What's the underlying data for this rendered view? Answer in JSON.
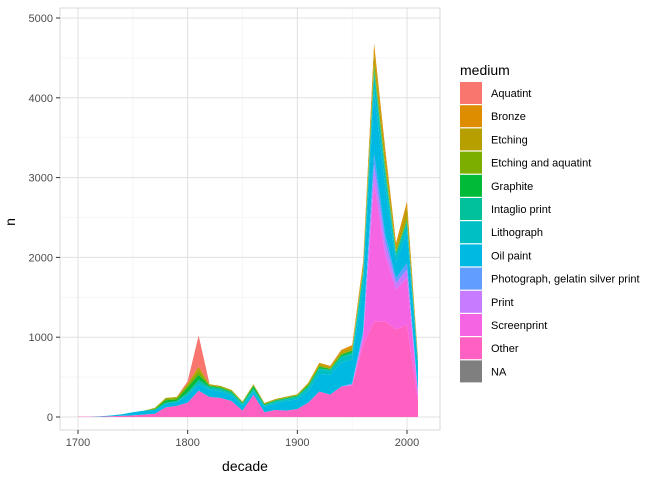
{
  "chart_data": {
    "type": "area",
    "stacked": true,
    "title": "",
    "xlabel": "decade",
    "ylabel": "n",
    "xlim": [
      1690,
      2010
    ],
    "ylim": [
      0,
      5000
    ],
    "x_ticks": [
      1700,
      1800,
      1900,
      2000
    ],
    "y_ticks": [
      0,
      1000,
      2000,
      3000,
      4000,
      5000
    ],
    "grid": true,
    "legend_title": "medium",
    "legend_position": "right",
    "x": [
      1700,
      1710,
      1720,
      1730,
      1740,
      1750,
      1760,
      1770,
      1780,
      1790,
      1800,
      1810,
      1820,
      1830,
      1840,
      1850,
      1860,
      1870,
      1880,
      1890,
      1900,
      1910,
      1920,
      1930,
      1940,
      1950,
      1960,
      1970,
      1980,
      1990,
      2000,
      2010
    ],
    "series": [
      {
        "name": "Other",
        "color": "#FF61C3",
        "values": [
          5,
          5,
          5,
          10,
          15,
          20,
          30,
          40,
          120,
          140,
          180,
          330,
          250,
          240,
          200,
          80,
          280,
          60,
          90,
          80,
          100,
          180,
          320,
          280,
          380,
          400,
          900,
          1200,
          1200,
          1100,
          1150,
          200
        ]
      },
      {
        "name": "Screenprint",
        "color": "#F564E3",
        "values": [
          0,
          0,
          0,
          0,
          0,
          0,
          0,
          0,
          0,
          0,
          0,
          0,
          0,
          0,
          0,
          0,
          0,
          0,
          0,
          0,
          0,
          0,
          0,
          0,
          0,
          0,
          80,
          1750,
          850,
          500,
          600,
          80
        ]
      },
      {
        "name": "Print",
        "color": "#C77CFF",
        "values": [
          0,
          0,
          0,
          0,
          0,
          0,
          0,
          0,
          0,
          0,
          0,
          0,
          0,
          0,
          0,
          0,
          0,
          0,
          0,
          0,
          0,
          0,
          0,
          0,
          0,
          10,
          50,
          200,
          150,
          80,
          100,
          20
        ]
      },
      {
        "name": "Photograph, gelatin silver print",
        "color": "#619CFF",
        "values": [
          0,
          0,
          0,
          0,
          0,
          0,
          0,
          0,
          0,
          0,
          0,
          0,
          0,
          0,
          0,
          0,
          0,
          0,
          0,
          0,
          0,
          0,
          0,
          0,
          0,
          10,
          50,
          150,
          100,
          60,
          80,
          20
        ]
      },
      {
        "name": "Oil paint",
        "color": "#00B9E3",
        "values": [
          0,
          0,
          5,
          8,
          20,
          40,
          50,
          50,
          50,
          50,
          90,
          80,
          90,
          80,
          70,
          60,
          40,
          70,
          80,
          120,
          120,
          150,
          220,
          250,
          300,
          300,
          550,
          800,
          600,
          200,
          400,
          300
        ]
      },
      {
        "name": "Lithograph",
        "color": "#00BFC4",
        "values": [
          0,
          0,
          0,
          0,
          0,
          0,
          0,
          0,
          0,
          0,
          20,
          30,
          20,
          20,
          20,
          20,
          20,
          10,
          20,
          20,
          30,
          40,
          60,
          50,
          60,
          70,
          150,
          200,
          150,
          80,
          100,
          60
        ]
      },
      {
        "name": "Intaglio print",
        "color": "#00C19A",
        "values": [
          0,
          0,
          0,
          0,
          0,
          0,
          0,
          0,
          10,
          10,
          20,
          30,
          20,
          20,
          20,
          10,
          20,
          10,
          10,
          10,
          10,
          10,
          10,
          10,
          20,
          20,
          30,
          50,
          50,
          20,
          20,
          10
        ]
      },
      {
        "name": "Graphite",
        "color": "#00BA38",
        "values": [
          0,
          0,
          0,
          0,
          0,
          0,
          0,
          10,
          30,
          20,
          60,
          60,
          10,
          10,
          10,
          10,
          30,
          10,
          10,
          10,
          10,
          20,
          20,
          10,
          20,
          20,
          20,
          30,
          30,
          20,
          20,
          10
        ]
      },
      {
        "name": "Etching and aquatint",
        "color": "#7CAE00",
        "values": [
          0,
          0,
          0,
          0,
          0,
          0,
          0,
          5,
          20,
          20,
          30,
          50,
          10,
          10,
          10,
          5,
          10,
          5,
          5,
          5,
          5,
          10,
          10,
          10,
          10,
          10,
          20,
          50,
          50,
          20,
          20,
          10
        ]
      },
      {
        "name": "Etching",
        "color": "#B79F00",
        "values": [
          0,
          0,
          0,
          0,
          0,
          0,
          0,
          10,
          10,
          10,
          20,
          50,
          10,
          10,
          10,
          10,
          10,
          10,
          10,
          10,
          10,
          20,
          30,
          20,
          30,
          30,
          50,
          150,
          120,
          50,
          150,
          20
        ]
      },
      {
        "name": "Bronze",
        "color": "#DE8C00",
        "values": [
          0,
          0,
          0,
          0,
          0,
          0,
          0,
          0,
          0,
          0,
          0,
          0,
          0,
          0,
          0,
          0,
          0,
          0,
          0,
          0,
          0,
          0,
          10,
          10,
          20,
          30,
          50,
          100,
          80,
          50,
          60,
          20
        ]
      },
      {
        "name": "Aquatint",
        "color": "#F8766D",
        "values": [
          0,
          0,
          0,
          0,
          0,
          0,
          0,
          0,
          0,
          0,
          30,
          390,
          0,
          0,
          0,
          0,
          0,
          0,
          0,
          0,
          0,
          0,
          0,
          0,
          0,
          0,
          0,
          0,
          0,
          0,
          0,
          0
        ]
      },
      {
        "name": "NA",
        "color": "#7F7F7F",
        "values": [
          0,
          0,
          0,
          0,
          0,
          0,
          0,
          0,
          0,
          0,
          0,
          0,
          0,
          0,
          0,
          0,
          0,
          0,
          0,
          0,
          0,
          0,
          0,
          0,
          0,
          0,
          0,
          0,
          0,
          0,
          0,
          0
        ]
      }
    ],
    "legend_order": [
      "Aquatint",
      "Bronze",
      "Etching",
      "Etching and aquatint",
      "Graphite",
      "Intaglio print",
      "Lithograph",
      "Oil paint",
      "Photograph, gelatin silver print",
      "Print",
      "Screenprint",
      "Other",
      "NA"
    ]
  }
}
